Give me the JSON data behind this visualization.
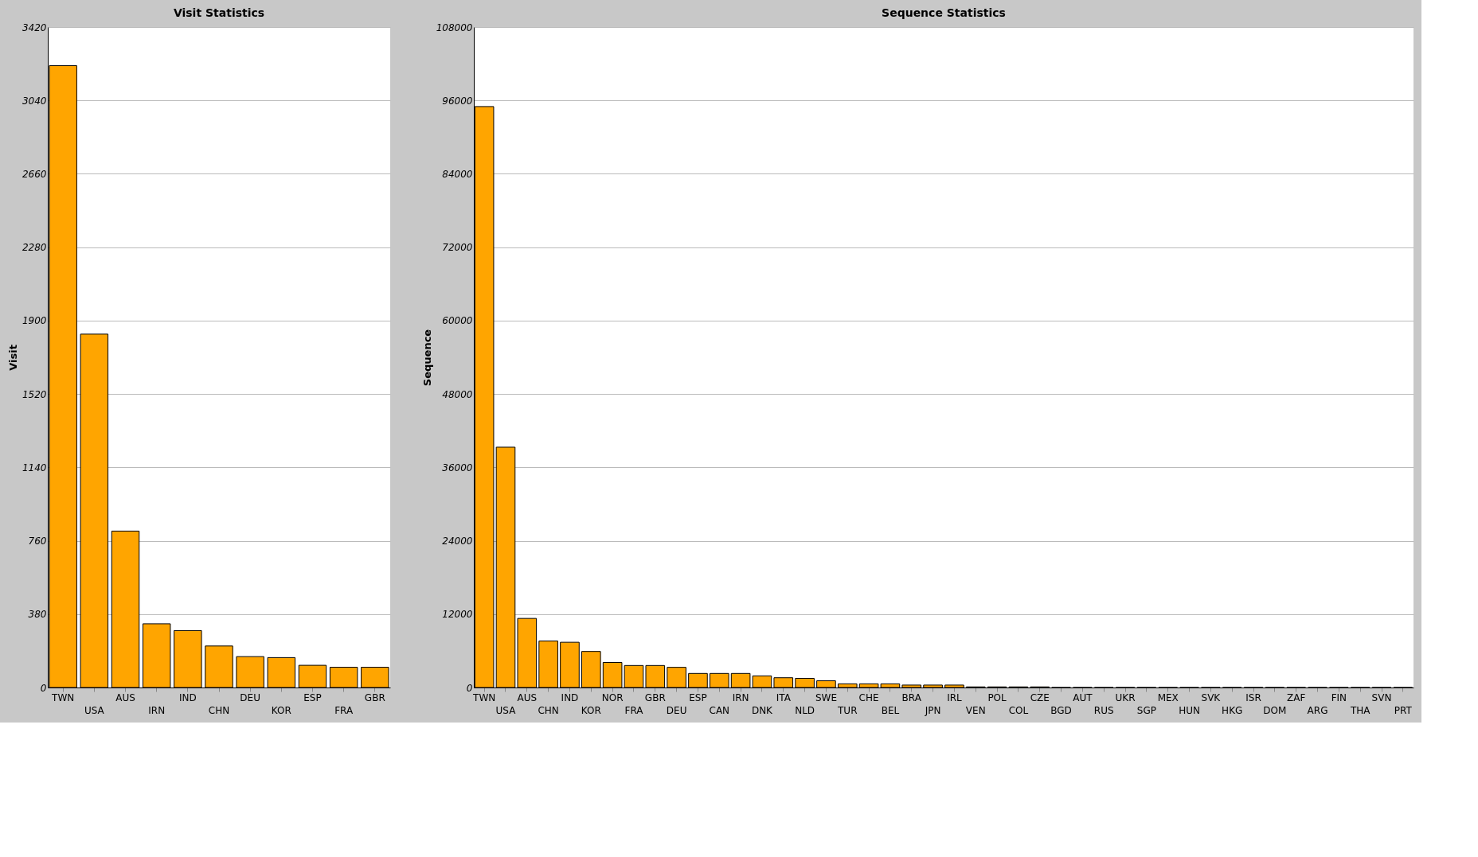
{
  "chart_data": [
    {
      "type": "bar",
      "title": "Visit Statistics",
      "ylabel": "Visit",
      "color": "#ffa500",
      "grid": "y",
      "categories": [
        "TWN",
        "USA",
        "AUS",
        "IRN",
        "IND",
        "CHN",
        "DEU",
        "KOR",
        "ESP",
        "FRA",
        "GBR"
      ],
      "values": [
        3220,
        1830,
        810,
        330,
        295,
        215,
        160,
        155,
        115,
        105,
        105
      ],
      "ylim": [
        0,
        3420
      ],
      "yticks": [
        0,
        380,
        760,
        1140,
        1520,
        1900,
        2280,
        2660,
        3040,
        3420
      ]
    },
    {
      "type": "bar",
      "title": "Sequence Statistics",
      "ylabel": "Sequence",
      "color": "#ffa500",
      "grid": "y",
      "categories": [
        "TWN",
        "USA",
        "AUS",
        "CHN",
        "IND",
        "KOR",
        "NOR",
        "FRA",
        "GBR",
        "DEU",
        "ESP",
        "CAN",
        "IRN",
        "DNK",
        "ITA",
        "NLD",
        "SWE",
        "TUR",
        "CHE",
        "BEL",
        "BRA",
        "JPN",
        "IRL",
        "VEN",
        "POL",
        "COL",
        "CZE",
        "BGD",
        "AUT",
        "RUS",
        "UKR",
        "SGP",
        "MEX",
        "HUN",
        "SVK",
        "HKG",
        "ISR",
        "DOM",
        "ZAF",
        "ARG",
        "FIN",
        "THA",
        "SVN",
        "PRT"
      ],
      "values": [
        95000,
        39300,
        11300,
        7600,
        7400,
        5900,
        4100,
        3600,
        3600,
        3300,
        2300,
        2300,
        2300,
        1900,
        1600,
        1500,
        1100,
        600,
        600,
        600,
        400,
        400,
        400,
        100,
        100,
        100,
        100,
        0,
        0,
        0,
        0,
        0,
        0,
        0,
        0,
        0,
        0,
        0,
        0,
        0,
        0,
        0,
        0,
        0
      ],
      "ylim": [
        0,
        108000
      ],
      "yticks": [
        0,
        12000,
        24000,
        36000,
        48000,
        60000,
        72000,
        84000,
        96000,
        108000
      ]
    }
  ]
}
